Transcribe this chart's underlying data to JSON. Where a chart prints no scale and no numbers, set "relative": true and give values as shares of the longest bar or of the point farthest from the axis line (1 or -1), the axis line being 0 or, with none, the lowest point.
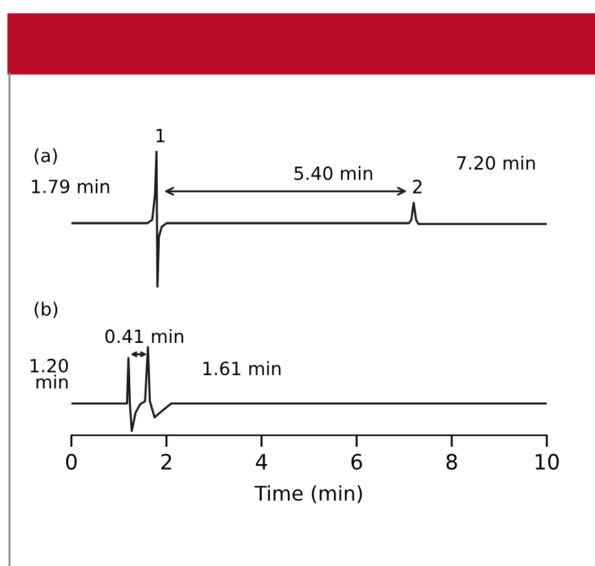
{
  "chart_data": {
    "type": "line",
    "relative": true,
    "xlabel": "Time (min)",
    "xlim": [
      0,
      10
    ],
    "xticks": [
      0,
      2,
      4,
      6,
      8,
      10
    ],
    "grid": false,
    "legend": false,
    "tick_labels": "x",
    "series": [
      {
        "color": "#1a1a1a",
        "x": [
          0,
          1.6,
          1.7,
          1.76,
          1.79,
          1.81,
          1.84,
          1.9,
          2.0,
          7.1,
          7.15,
          7.2,
          7.25,
          7.3,
          10
        ],
        "values": [
          0.748,
          0.748,
          0.76,
          0.85,
          1.0,
          0.524,
          0.7,
          0.735,
          0.748,
          0.748,
          0.76,
          0.82,
          0.76,
          0.745,
          0.745
        ]
      },
      {
        "color": "#1a1a1a",
        "x": [
          0,
          1.17,
          1.2,
          1.23,
          1.27,
          1.35,
          1.45,
          1.55,
          1.61,
          1.65,
          1.75,
          1.9,
          2.1,
          10
        ],
        "values": [
          0.112,
          0.112,
          0.272,
          0.112,
          0.015,
          0.08,
          0.11,
          0.12,
          0.311,
          0.12,
          0.063,
          0.085,
          0.112,
          0.112
        ]
      }
    ],
    "annotations": [
      "(a)",
      "(b)",
      "5.40 min",
      "0.41 min",
      "1.79 min",
      "7.20 min",
      "1.20\nmin",
      "1.61 min",
      {
        "text": "1",
        "x": 1.79,
        "y": 1.0
      },
      {
        "text": "2",
        "x": 7.2,
        "y": 0.82
      }
    ]
  }
}
